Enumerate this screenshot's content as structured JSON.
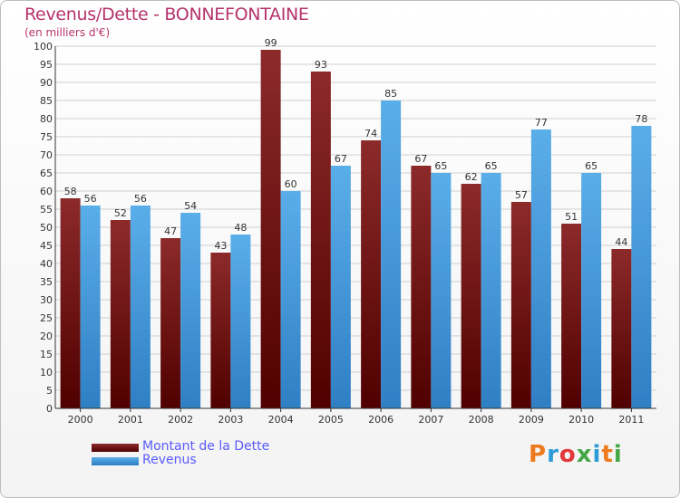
{
  "title": "Revenus/Dette - BONNEFONTAINE",
  "subtitle": "(en milliers d'€)",
  "logo": {
    "text": "Proxiti",
    "letters": [
      {
        "char": "P",
        "color": "#ee7a1e"
      },
      {
        "char": "r",
        "color": "#2d9bd8"
      },
      {
        "char": "o",
        "color": "#e2383c"
      },
      {
        "char": "x",
        "color": "#45a845"
      },
      {
        "char": "i",
        "color": "#2d9bd8"
      },
      {
        "char": "t",
        "color": "#ee7a1e"
      },
      {
        "char": "i",
        "color": "#45a845"
      }
    ]
  },
  "chart_data": {
    "type": "bar",
    "title": "Revenus/Dette - BONNEFONTAINE",
    "subtitle": "(en milliers d'€)",
    "categories": [
      "2000",
      "2001",
      "2002",
      "2003",
      "2004",
      "2005",
      "2006",
      "2007",
      "2008",
      "2009",
      "2010",
      "2011"
    ],
    "series": [
      {
        "name": "Montant de la Dette",
        "values": [
          58,
          52,
          47,
          43,
          99,
          93,
          74,
          67,
          62,
          57,
          51,
          44
        ],
        "color_top": "#8c2a2a",
        "color_bottom": "#500000"
      },
      {
        "name": "Revenus",
        "values": [
          56,
          56,
          54,
          48,
          60,
          67,
          85,
          65,
          65,
          77,
          65,
          78
        ],
        "color_top": "#5aaee8",
        "color_bottom": "#2f7fc4"
      }
    ],
    "ylim": [
      0,
      100
    ],
    "ytick_step": 5,
    "grid": true,
    "legend": "bottom-left"
  }
}
